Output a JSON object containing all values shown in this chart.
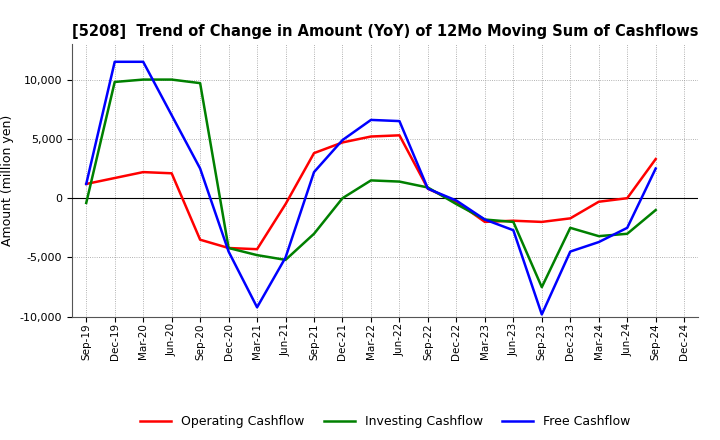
{
  "title": "[5208]  Trend of Change in Amount (YoY) of 12Mo Moving Sum of Cashflows",
  "ylabel": "Amount (million yen)",
  "xlabels": [
    "Sep-19",
    "Dec-19",
    "Mar-20",
    "Jun-20",
    "Sep-20",
    "Dec-20",
    "Mar-21",
    "Jun-21",
    "Sep-21",
    "Dec-21",
    "Mar-22",
    "Jun-22",
    "Sep-22",
    "Dec-22",
    "Mar-23",
    "Jun-23",
    "Sep-23",
    "Dec-23",
    "Mar-24",
    "Jun-24",
    "Sep-24",
    "Dec-24"
  ],
  "operating": [
    1200,
    1700,
    2200,
    2100,
    -3500,
    -4200,
    -4300,
    -500,
    3800,
    4700,
    5200,
    5300,
    800,
    -300,
    -2000,
    -1900,
    -2000,
    -1700,
    -300,
    0,
    3300,
    null
  ],
  "investing": [
    -400,
    9800,
    10000,
    10000,
    9700,
    -4200,
    -4800,
    -5200,
    -3000,
    0,
    1500,
    1400,
    900,
    -500,
    -1800,
    -2000,
    -7500,
    -2500,
    -3200,
    -3000,
    -1000,
    null
  ],
  "free": [
    1200,
    11500,
    11500,
    7000,
    2500,
    -4500,
    -9200,
    -5000,
    2200,
    4900,
    6600,
    6500,
    800,
    -200,
    -1800,
    -2700,
    -9800,
    -4500,
    -3700,
    -2500,
    2500,
    null
  ],
  "ylim": [
    -10000,
    13000
  ],
  "yticks": [
    -10000,
    -5000,
    0,
    5000,
    10000
  ],
  "colors": {
    "operating": "#ff0000",
    "investing": "#008000",
    "free": "#0000ff"
  },
  "legend_labels": [
    "Operating Cashflow",
    "Investing Cashflow",
    "Free Cashflow"
  ],
  "bg_color": "#ffffff",
  "grid_color": "#999999"
}
